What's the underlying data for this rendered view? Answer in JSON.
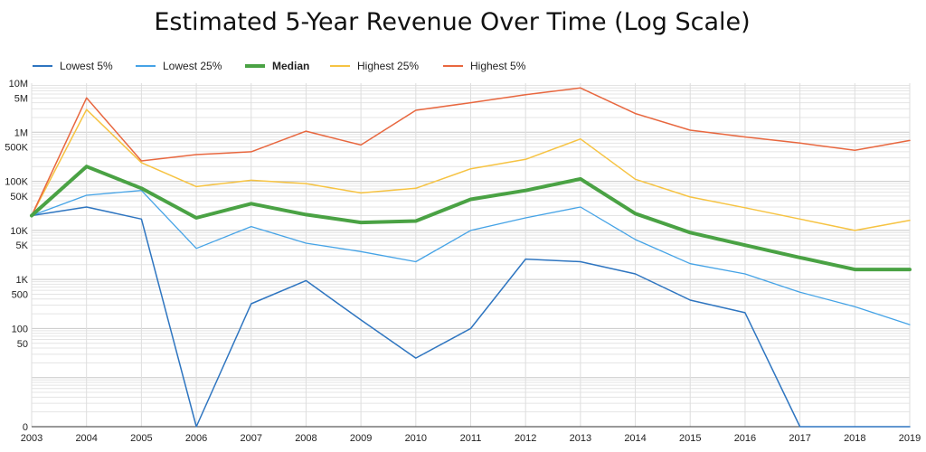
{
  "chart_data": {
    "type": "line",
    "title": "Estimated 5-Year Revenue Over Time (Log Scale)",
    "xlabel": "",
    "ylabel": "",
    "yscale": "log",
    "ylim": [
      1,
      10000000
    ],
    "grid": true,
    "legend_position": "top-left",
    "x": [
      "2003",
      "2004",
      "2005",
      "2006",
      "2007",
      "2008",
      "2009",
      "2010",
      "2011",
      "2012",
      "2013",
      "2014",
      "2015",
      "2016",
      "2017",
      "2018",
      "2019"
    ],
    "y_ticks": [
      {
        "label": "10M",
        "value": 10000000
      },
      {
        "label": "5M",
        "value": 5000000
      },
      {
        "label": "1M",
        "value": 1000000
      },
      {
        "label": "500K",
        "value": 500000
      },
      {
        "label": "100K",
        "value": 100000
      },
      {
        "label": "50K",
        "value": 50000
      },
      {
        "label": "10K",
        "value": 10000
      },
      {
        "label": "5K",
        "value": 5000
      },
      {
        "label": "1K",
        "value": 1000
      },
      {
        "label": "500",
        "value": 500
      },
      {
        "label": "100",
        "value": 100
      },
      {
        "label": "50",
        "value": 50
      },
      {
        "label": "0",
        "value": 1
      }
    ],
    "series": [
      {
        "name": "Lowest 5%",
        "color": "#2e75c0",
        "width": 1.5,
        "values": [
          20000,
          30000,
          17000,
          1,
          320,
          950,
          150,
          25,
          100,
          2600,
          2300,
          1300,
          380,
          210,
          1,
          1,
          1
        ]
      },
      {
        "name": "Lowest 25%",
        "color": "#45a3e6",
        "width": 1.3,
        "values": [
          20000,
          52000,
          65000,
          4300,
          12000,
          5500,
          3700,
          2300,
          10000,
          18000,
          30000,
          6500,
          2100,
          1300,
          550,
          280,
          120
        ]
      },
      {
        "name": "Median",
        "color": "#4aa244",
        "width": 4,
        "values": [
          20000,
          200000,
          72000,
          18000,
          35000,
          21000,
          14500,
          15500,
          43000,
          65000,
          112000,
          22000,
          9000,
          5000,
          2800,
          1600,
          1600
        ]
      },
      {
        "name": "Highest 25%",
        "color": "#f6c342",
        "width": 1.5,
        "values": [
          20000,
          2900000,
          240000,
          78000,
          105000,
          90000,
          58000,
          72000,
          180000,
          280000,
          730000,
          110000,
          48000,
          29000,
          17000,
          10000,
          16000
        ]
      },
      {
        "name": "Highest 5%",
        "color": "#e8673f",
        "width": 1.5,
        "values": [
          20000,
          5000000,
          260000,
          350000,
          400000,
          1050000,
          550000,
          2800000,
          4000000,
          5800000,
          8000000,
          2400000,
          1100000,
          800000,
          600000,
          430000,
          680000
        ]
      }
    ]
  }
}
